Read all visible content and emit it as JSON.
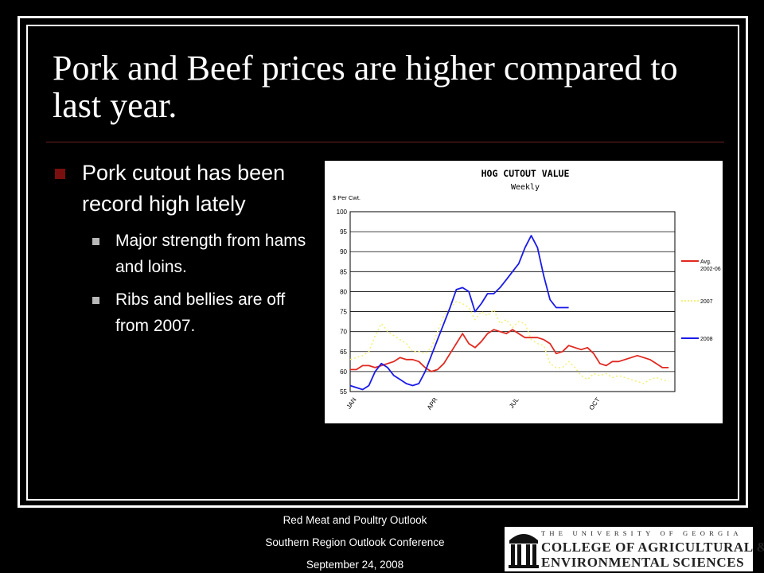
{
  "slide": {
    "title": "Pork and Beef  prices are higher compared to last year.",
    "bullets": [
      {
        "text": "Pork cutout has been record high lately",
        "sub": [
          "Major strength from hams and loins.",
          "Ribs and bellies are off from 2007."
        ]
      }
    ],
    "footer": [
      "Red Meat and Poultry Outlook",
      "Southern Region Outlook Conference",
      "September 24, 2008"
    ],
    "logo": {
      "line1": "THE UNIVERSITY OF GEORGIA",
      "line2": "COLLEGE OF AGRICULTURAL &",
      "line3": "ENVIRONMENTAL SCIENCES"
    }
  },
  "chart_data": {
    "type": "line",
    "title": "HOG CUTOUT VALUE",
    "subtitle": "Weekly",
    "ylabel": "$ Per Cwt.",
    "ylim": [
      55,
      100
    ],
    "yticks": [
      55,
      60,
      65,
      70,
      75,
      80,
      85,
      90,
      95,
      100
    ],
    "xlim": [
      1,
      53
    ],
    "xticks": [
      {
        "label": "JAN",
        "week": 1
      },
      {
        "label": "APR",
        "week": 14
      },
      {
        "label": "JUL",
        "week": 27
      },
      {
        "label": "OCT",
        "week": 40
      }
    ],
    "grid": true,
    "legend": "right",
    "series": [
      {
        "name": "Avg. 2002-06",
        "color": "#e0281f",
        "style": "solid",
        "x": [
          1,
          2,
          3,
          4,
          5,
          6,
          7,
          8,
          9,
          10,
          11,
          12,
          13,
          14,
          15,
          16,
          17,
          18,
          19,
          20,
          21,
          22,
          23,
          24,
          25,
          26,
          27,
          28,
          29,
          30,
          31,
          32,
          33,
          34,
          35,
          36,
          37,
          38,
          39,
          40,
          41,
          42,
          43,
          44,
          45,
          46,
          47,
          48,
          49,
          50,
          51,
          52
        ],
        "y": [
          60.5,
          60.5,
          61.5,
          61.5,
          61,
          61.5,
          62,
          62.5,
          63.5,
          63,
          63,
          62.5,
          61,
          60,
          60.5,
          62,
          64.5,
          67,
          69.5,
          67,
          66,
          67.5,
          69.5,
          70.5,
          70,
          69.5,
          70.5,
          69.5,
          68.5,
          68.5,
          68.5,
          68,
          67,
          64.5,
          65,
          66.5,
          66,
          65.5,
          66,
          64.5,
          62,
          61.5,
          62.5,
          62.5,
          63,
          63.5,
          64,
          63.5,
          63,
          62,
          61,
          61
        ]
      },
      {
        "name": "2007",
        "color": "#f5f07a",
        "style": "dotted",
        "x": [
          1,
          2,
          3,
          4,
          5,
          6,
          7,
          8,
          9,
          10,
          11,
          12,
          13,
          14,
          15,
          16,
          17,
          18,
          19,
          20,
          21,
          22,
          23,
          24,
          25,
          26,
          27,
          28,
          29,
          30,
          31,
          32,
          33,
          34,
          35,
          36,
          37,
          38,
          39,
          40,
          41,
          42,
          43,
          44,
          45,
          46,
          47,
          48,
          49,
          50,
          51,
          52
        ],
        "y": [
          63,
          63.5,
          64,
          65,
          69,
          72,
          70,
          69,
          68,
          67,
          65,
          65,
          64.5,
          66,
          70,
          74,
          76,
          77.5,
          77,
          76,
          73,
          75,
          74,
          75.5,
          72,
          73,
          71,
          72.5,
          72,
          68,
          67,
          66.5,
          62,
          61,
          61,
          62.5,
          61,
          59,
          58,
          59.5,
          59,
          59.5,
          58.5,
          59,
          58.5,
          58,
          57.5,
          57,
          58,
          58.5,
          58,
          57.5
        ]
      },
      {
        "name": "2008",
        "color": "#1a1ae8",
        "style": "solid",
        "x": [
          1,
          2,
          3,
          4,
          5,
          6,
          7,
          8,
          9,
          10,
          11,
          12,
          13,
          14,
          15,
          16,
          17,
          18,
          19,
          20,
          21,
          22,
          23,
          24,
          25,
          26,
          27,
          28,
          29,
          30,
          31,
          32,
          33,
          34,
          35,
          36
        ],
        "y": [
          56.5,
          56,
          55.5,
          56.5,
          60,
          62,
          61,
          59,
          58,
          57,
          56.5,
          57,
          60,
          64,
          68,
          72,
          76,
          80.5,
          81,
          80,
          75,
          77,
          79.5,
          79.5,
          81,
          83,
          85,
          87,
          91,
          94,
          91,
          84,
          78,
          76,
          76,
          76
        ]
      }
    ]
  }
}
